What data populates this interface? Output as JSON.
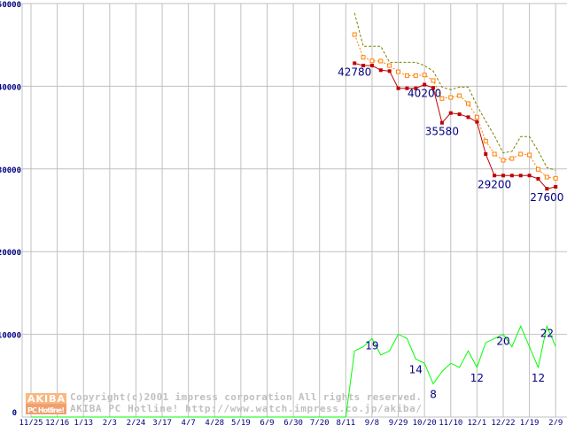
{
  "chart_data": {
    "type": "line",
    "title": "",
    "xlabel": "",
    "ylabel": "",
    "ylim": [
      0,
      50000
    ],
    "yticks": [
      "0",
      "10000",
      "20000",
      "30000",
      "40000",
      "50000"
    ],
    "ytick_values": [
      0,
      10000,
      20000,
      30000,
      40000,
      50000
    ],
    "xtick_labels": [
      "11/25",
      "12/16",
      "1/13",
      "2/3",
      "2/24",
      "3/17",
      "4/7",
      "4/28",
      "5/19",
      "6/9",
      "6/30",
      "7/20",
      "8/11",
      "9/8",
      "9/29",
      "10/20",
      "11/10",
      "12/1",
      "12/22",
      "1/19",
      "2/9"
    ],
    "xtick_weeks_step": 3,
    "grid": true,
    "series": [
      {
        "name": "max",
        "style": "dashed",
        "color": "#808000",
        "start_week": 37,
        "values": [
          48860,
          44830,
          44830,
          44830,
          42900,
          42900,
          42900,
          42900,
          42500,
          41830,
          39900,
          39580,
          39900,
          39900,
          37650,
          35790,
          34010,
          31940,
          32120,
          33910,
          33910,
          32190,
          30160,
          29840
        ]
      },
      {
        "name": "average",
        "style": "dotted-square",
        "color": "#ff8000",
        "start_week": 37,
        "values": [
          46250,
          43500,
          43070,
          43040,
          42500,
          41750,
          41290,
          41290,
          41360,
          40690,
          38510,
          38650,
          38860,
          37900,
          36260,
          33370,
          31800,
          31050,
          31260,
          31800,
          31690,
          29950,
          29010,
          28870
        ]
      },
      {
        "name": "min",
        "style": "solid-square",
        "color": "#c00000",
        "start_week": 37,
        "values": [
          42780,
          42500,
          42500,
          41940,
          41830,
          39750,
          39750,
          39750,
          40200,
          39800,
          35580,
          36760,
          36620,
          36260,
          35690,
          31800,
          29200,
          29200,
          29200,
          29200,
          29200,
          28800,
          27600,
          27840
        ]
      },
      {
        "name": "count",
        "style": "solid",
        "color": "#00ff00",
        "start_week": 0,
        "scale": 500,
        "zero_until_week": 36,
        "values_from_week37": [
          16,
          17,
          19,
          15,
          16,
          20,
          19,
          14,
          13,
          8,
          11,
          13,
          12,
          16,
          12,
          18,
          19,
          20,
          17,
          22,
          17,
          12,
          22,
          17
        ]
      }
    ],
    "annotations": [
      {
        "series": "min",
        "index": 0,
        "text": "42780"
      },
      {
        "series": "min",
        "index": 8,
        "text": "40200"
      },
      {
        "series": "min",
        "index": 10,
        "text": "35580"
      },
      {
        "series": "min",
        "index": 16,
        "text": "29200"
      },
      {
        "series": "min",
        "index": 22,
        "text": "27600"
      },
      {
        "series": "count",
        "index": 2,
        "text": "19"
      },
      {
        "series": "count",
        "index": 7,
        "text": "14"
      },
      {
        "series": "count",
        "index": 9,
        "text": "8"
      },
      {
        "series": "count",
        "index": 14,
        "text": "12"
      },
      {
        "series": "count",
        "index": 17,
        "text": "20"
      },
      {
        "series": "count",
        "index": 21,
        "text": "12"
      },
      {
        "series": "count",
        "index": 22,
        "text": "22"
      }
    ]
  },
  "watermark": {
    "logo_top": "AKIBA",
    "logo_bottom": "PC Hotline!",
    "line1": "Copyright(c)2001 impress corporation All rights reserved.",
    "line2": "AKIBA PC Hotline!  http://www.watch.impress.co.jp/akiba/"
  }
}
